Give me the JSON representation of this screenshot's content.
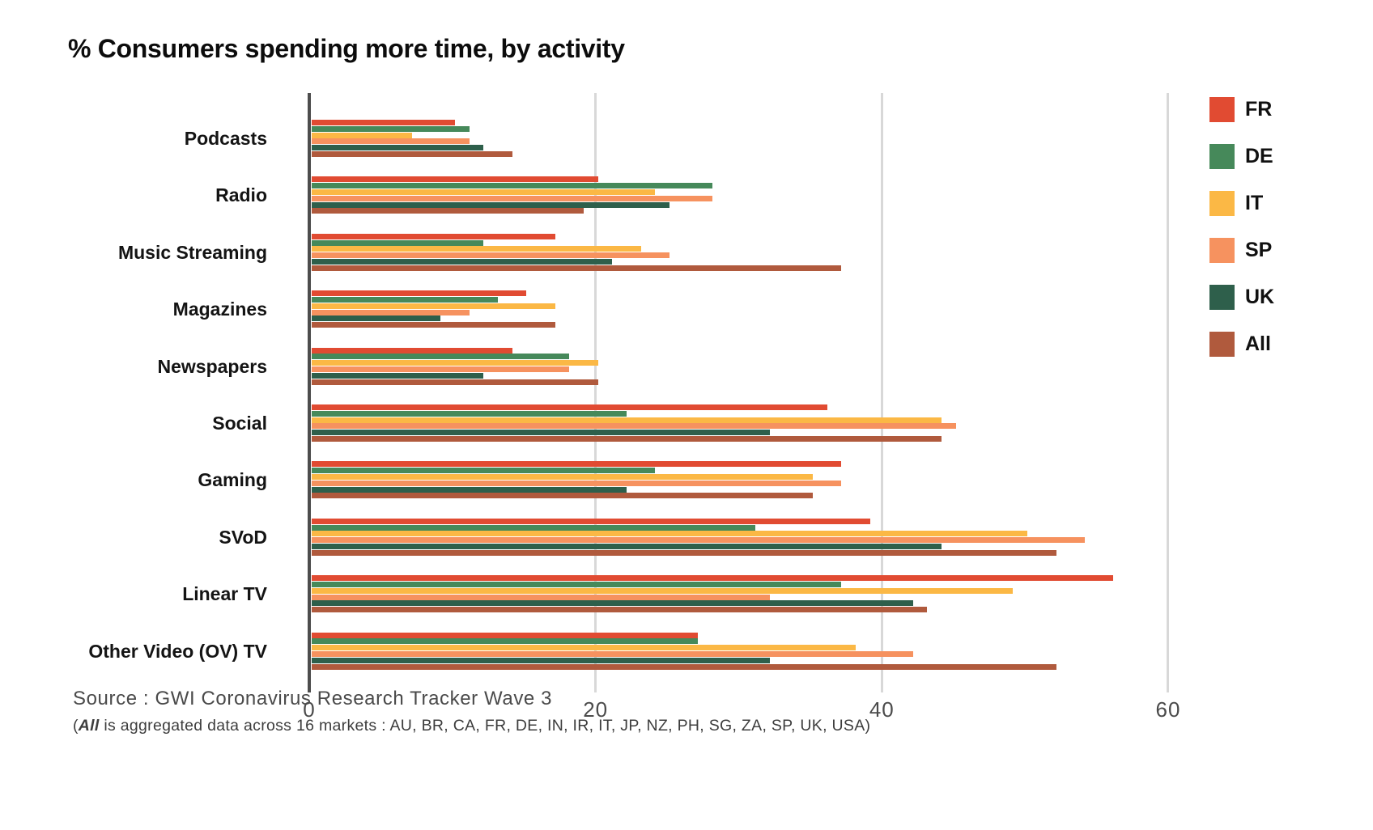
{
  "title": "% Consumers spending more time, by activity",
  "chart_data": {
    "type": "bar",
    "orientation": "horizontal",
    "title": "% Consumers spending more time, by activity",
    "xlabel": "",
    "ylabel": "",
    "xlim": [
      0,
      60
    ],
    "x_ticks": [
      0,
      20,
      40,
      60
    ],
    "grid": true,
    "legend_position": "right",
    "categories": [
      "Podcasts",
      "Radio",
      "Music Streaming",
      "Magazines",
      "Newspapers",
      "Social",
      "Gaming",
      "SVoD",
      "Linear TV",
      "Other Video (OV) TV"
    ],
    "series": [
      {
        "name": "FR",
        "color": "#e14b32",
        "values": [
          10,
          20,
          17,
          15,
          14,
          36,
          37,
          39,
          56,
          27
        ]
      },
      {
        "name": "DE",
        "color": "#46895a",
        "values": [
          11,
          28,
          12,
          13,
          18,
          22,
          24,
          31,
          37,
          27
        ]
      },
      {
        "name": "IT",
        "color": "#fbb845",
        "values": [
          7,
          24,
          23,
          17,
          20,
          44,
          35,
          50,
          49,
          38
        ]
      },
      {
        "name": "SP",
        "color": "#f6925f",
        "values": [
          11,
          28,
          25,
          11,
          18,
          45,
          37,
          54,
          32,
          42
        ]
      },
      {
        "name": "UK",
        "color": "#2e5f4b",
        "values": [
          12,
          25,
          21,
          9,
          12,
          32,
          22,
          44,
          42,
          32
        ]
      },
      {
        "name": "All",
        "color": "#b05a3d",
        "values": [
          14,
          19,
          37,
          17,
          20,
          44,
          35,
          52,
          43,
          52
        ]
      }
    ]
  },
  "source": {
    "line1": "Source : GWI Coronavirus Research Tracker Wave 3",
    "line2_open": "(",
    "line2_emph": "All",
    "line2_rest": " is aggregated data across 16 markets : AU, BR, CA, FR, DE, IN, IR, IT, JP, NZ, PH, SG, ZA, SP, UK, USA)"
  }
}
